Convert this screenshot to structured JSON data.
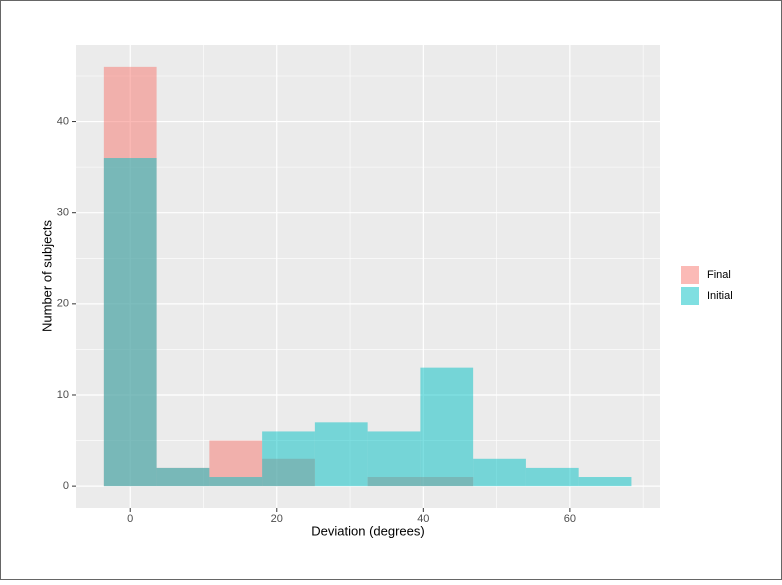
{
  "chart_data": {
    "type": "histogram",
    "xlabel": "Deviation (degrees)",
    "ylabel": "Number of subjects",
    "bins": [
      -3.6,
      3.6,
      10.8,
      18.0,
      25.2,
      32.4,
      39.6,
      46.8,
      54.0,
      61.2,
      68.4
    ],
    "series": [
      {
        "name": "Final",
        "color": "#F8766D",
        "values": [
          46,
          2,
          5,
          3,
          0,
          1,
          1,
          0,
          0,
          0
        ]
      },
      {
        "name": "Initial",
        "color": "#00BFC4",
        "values": [
          36,
          2,
          1,
          6,
          7,
          6,
          13,
          3,
          2,
          1
        ]
      }
    ],
    "opacity": 0.5,
    "xlim": [
      -7.4,
      72.3
    ],
    "xticks": [
      0,
      20,
      40,
      60
    ],
    "x_minor_breaks": [
      10,
      30,
      50,
      70
    ],
    "ylim": [
      -2.4,
      48.4
    ],
    "yticks": [
      0,
      10,
      20,
      30,
      40
    ],
    "y_minor_breaks": [
      5,
      15,
      25,
      35,
      45
    ],
    "grid": true,
    "legend_position": "right"
  }
}
